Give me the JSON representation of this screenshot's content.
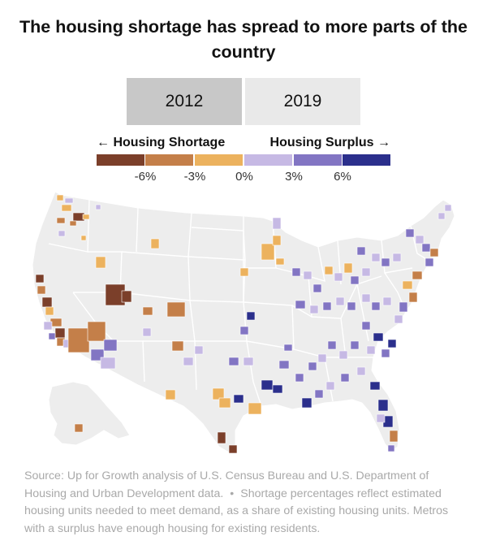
{
  "title": "The housing shortage has spread to more parts of the country",
  "tabs": [
    {
      "label": "2012",
      "selected": true
    },
    {
      "label": "2019",
      "selected": false
    }
  ],
  "legend": {
    "shortage_label": "← Housing Shortage",
    "surplus_label": "Housing Surplus →",
    "colors": [
      "#7b3f2a",
      "#c47f49",
      "#ecb25e",
      "#c6b9e4",
      "#8275c3",
      "#2b2f8c"
    ],
    "ticks": [
      "-6%",
      "-3%",
      "0%",
      "3%",
      "6%"
    ]
  },
  "map": {
    "land_color": "#ededed",
    "border_color": "#ffffff"
  },
  "source": {
    "part1": "Source: Up for Growth analysis of U.S. Census Bureau and U.S. Department of Housing and Urban Development data.",
    "separator": "•",
    "part2": "Shortage percentages reflect estimated housing units needed to meet demand, as a share of existing housing units. Metros with a surplus have enough housing for existing residents."
  }
}
